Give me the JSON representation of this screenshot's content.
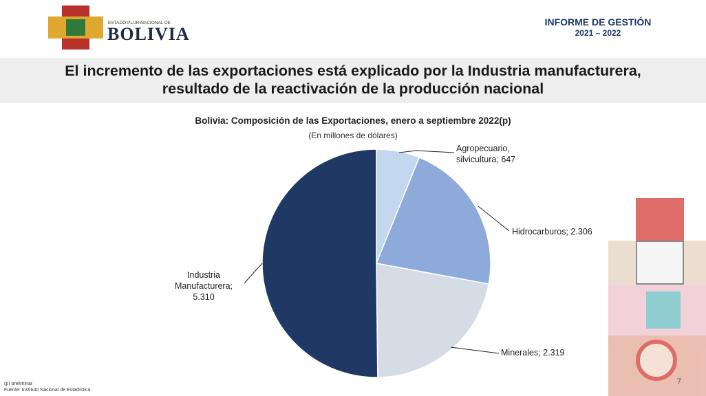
{
  "header": {
    "logo_small": "ESTADO PLURINACIONAL DE",
    "logo_big": "BOLIVIA",
    "report": "INFORME DE GESTIÓN",
    "years": "2021 – 2022"
  },
  "headline": [
    "El incremento de las exportaciones está explicado por la Industria manufacturera,",
    "resultado de la reactivación de la producción nacional"
  ],
  "chart_data": {
    "type": "pie",
    "title": "Bolivia: Composición de las Exportaciones, enero a septiembre 2022(p)",
    "subtitle": "(En millones de dólares)",
    "categories": [
      "Agropecuario, silvicultura;",
      "Hidrocarburos;",
      "Minerales;",
      "Industria Manufacturera;"
    ],
    "values": [
      647,
      2306,
      2319,
      5310
    ],
    "value_labels": [
      "647",
      "2.306",
      "2.319",
      "5.310"
    ],
    "colors": [
      "#c3d7ee",
      "#8eaadb",
      "#d6dce5",
      "#1f3864"
    ]
  },
  "footer": {
    "note": "(p) preliminar",
    "source": "Fuente: Instituto Nacional de Estadística",
    "page": "7"
  }
}
